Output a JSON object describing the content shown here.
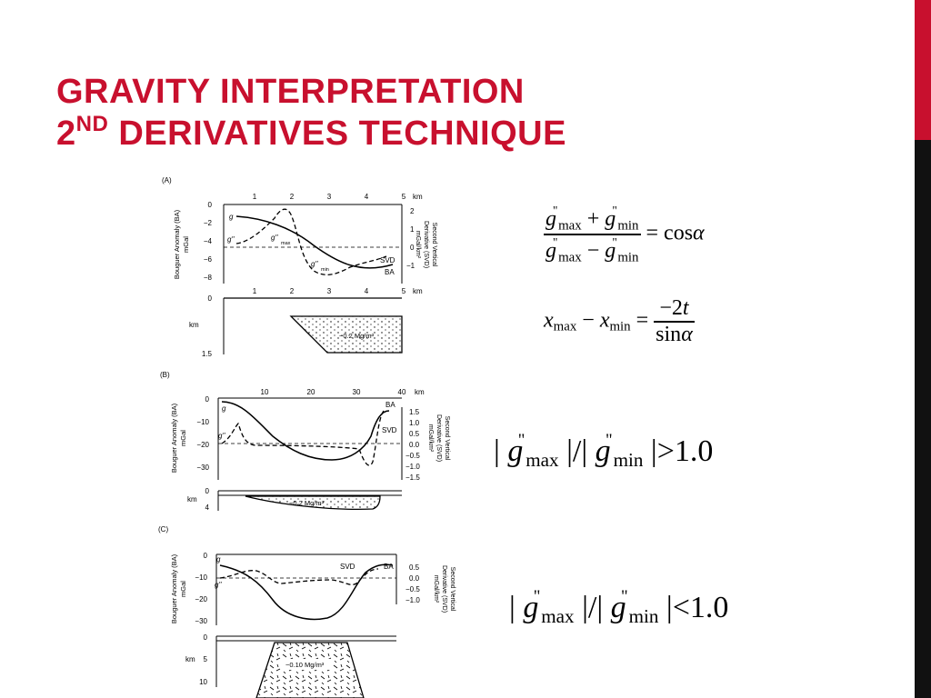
{
  "slide": {
    "title_line1": "Gravity Interpretation",
    "title_line2_prefix": "2",
    "title_line2_sup": "nd",
    "title_line2_rest": " Derivatives technique"
  },
  "figure": {
    "panel_a": {
      "label": "(A)",
      "km_ticks": [
        "1",
        "2",
        "3",
        "4",
        "5",
        "km"
      ],
      "left_ticks": [
        "0",
        "−2",
        "−4",
        "−6",
        "−8"
      ],
      "right_ticks": [
        "2",
        "1",
        "0",
        "−1"
      ],
      "left_axis_title": "Bouguer Anomaly (BA)",
      "left_axis_unit": "mGal",
      "right_axis_title_1": "Second Vertical",
      "right_axis_title_2": "Derivative (SVD)",
      "right_axis_title_3": "mGal/km²",
      "curve_g": "g",
      "curve_gpp": "g''",
      "gmax": "g''",
      "gmax_sub": "max",
      "gmin": "g''",
      "gmin_sub": "min",
      "svd": "SVD",
      "ba": "BA",
      "depth_km_ticks": [
        "0",
        "1",
        "2",
        "3",
        "4",
        "5",
        "km"
      ],
      "depth_label": "km",
      "depth_bottom": "1.5",
      "density": "−0.2 Mg/m³"
    },
    "panel_b": {
      "label": "(B)",
      "km_ticks": [
        "10",
        "20",
        "30",
        "40",
        "km"
      ],
      "left_ticks": [
        "0",
        "−10",
        "−20",
        "−30"
      ],
      "right_ticks": [
        "1.5",
        "1.0",
        "0.5",
        "0.0",
        "−0.5",
        "−1.0",
        "−1.5"
      ],
      "left_axis_title": "Bouguer Anomaly (BA)",
      "left_axis_unit": "mGal",
      "right_axis_title_1": "Second Vertical",
      "right_axis_title_2": "Derivative (SVD)",
      "right_axis_title_3": "mGal/km²",
      "curve_g": "g",
      "curve_gpp": "g''",
      "ba": "BA",
      "svd": "SVD",
      "depth_ticks": [
        "0",
        "4"
      ],
      "depth_label": "km",
      "density": "−0.2 Mg/m³"
    },
    "panel_c": {
      "label": "(C)",
      "left_ticks": [
        "0",
        "−10",
        "−20",
        "−30"
      ],
      "right_ticks": [
        "0.5",
        "0.0",
        "−0.5",
        "−1.0"
      ],
      "left_axis_title": "Bouguer Anomaly (BA)",
      "left_axis_unit": "mGal",
      "right_axis_title_1": "Second Vertical",
      "right_axis_title_2": "Derivative (SVD)",
      "right_axis_title_3": "mGal/km²",
      "curve_g": "g",
      "curve_gpp": "g''",
      "svd": "SVD",
      "ba": "BA",
      "depth_ticks": [
        "0",
        "5",
        "10"
      ],
      "depth_label": "km",
      "density": "−0.10 Mg/m³"
    }
  },
  "equations": {
    "eq1": {
      "g": "g",
      "prime": "\"",
      "max": "max",
      "min": "min",
      "plus": "+",
      "minus": "−",
      "equals": "=",
      "rhs": "cos",
      "alpha": "α"
    },
    "eq2": {
      "x": "x",
      "max": "max",
      "min": "min",
      "minus": "−",
      "equals": "=",
      "num": "−2",
      "t": "t",
      "den": "sin",
      "alpha": "α"
    },
    "eq3": {
      "bar": "|",
      "g": "g",
      "prime": "\"",
      "max": "max",
      "min": "min",
      "slash": "/",
      "rel": ">",
      "val": "1.0"
    },
    "eq4": {
      "bar": "|",
      "g": "g",
      "prime": "\"",
      "max": "max",
      "min": "min",
      "slash": "/",
      "rel": "<",
      "val": "1.0"
    }
  }
}
